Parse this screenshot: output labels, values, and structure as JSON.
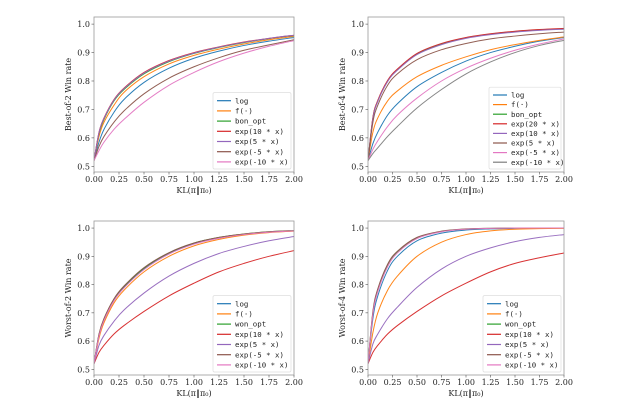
{
  "chart_data": [
    {
      "type": "line",
      "title": "",
      "xlabel": "KL(π‖π₀)",
      "ylabel": "Best-of-2 Win rate",
      "xlim": [
        0,
        2
      ],
      "ylim": [
        0.48,
        1.025
      ],
      "xticks": [
        "0.00",
        "0.25",
        "0.50",
        "0.75",
        "1.00",
        "1.25",
        "1.50",
        "1.75",
        "2.00"
      ],
      "yticks": [
        "0.5",
        "0.6",
        "0.7",
        "0.8",
        "0.9",
        "1.0"
      ],
      "legend": "lower-right",
      "grid": false,
      "x": [
        0,
        0.05,
        0.1,
        0.2,
        0.3,
        0.5,
        0.75,
        1.0,
        1.25,
        1.5,
        1.75,
        2.0
      ],
      "series": [
        {
          "name": "log",
          "color": "#1f77b4",
          "values": [
            0.52,
            0.585,
            0.63,
            0.69,
            0.735,
            0.795,
            0.845,
            0.88,
            0.905,
            0.925,
            0.94,
            0.953
          ]
        },
        {
          "name": "f(·)",
          "color": "#ff7f0e",
          "values": [
            0.52,
            0.605,
            0.655,
            0.715,
            0.76,
            0.815,
            0.86,
            0.89,
            0.912,
            0.93,
            0.945,
            0.957
          ]
        },
        {
          "name": "bon_opt",
          "color": "#2ca02c",
          "values": [
            0.52,
            0.615,
            0.665,
            0.73,
            0.77,
            0.825,
            0.868,
            0.897,
            0.918,
            0.935,
            0.949,
            0.96
          ]
        },
        {
          "name": "exp(10 * x)",
          "color": "#d62728",
          "values": [
            0.52,
            0.62,
            0.67,
            0.735,
            0.775,
            0.83,
            0.872,
            0.9,
            0.92,
            0.937,
            0.95,
            0.961
          ]
        },
        {
          "name": "exp(5 * x)",
          "color": "#9467bd",
          "values": [
            0.52,
            0.618,
            0.668,
            0.733,
            0.773,
            0.828,
            0.87,
            0.898,
            0.919,
            0.936,
            0.95,
            0.961
          ]
        },
        {
          "name": "exp(-5 * x)",
          "color": "#8c564b",
          "values": [
            0.52,
            0.57,
            0.605,
            0.655,
            0.695,
            0.755,
            0.81,
            0.85,
            0.882,
            0.908,
            0.927,
            0.945
          ]
        },
        {
          "name": "exp(-10 * x)",
          "color": "#e377c2",
          "values": [
            0.52,
            0.555,
            0.585,
            0.63,
            0.665,
            0.725,
            0.785,
            0.83,
            0.868,
            0.898,
            0.922,
            0.942
          ]
        }
      ]
    },
    {
      "type": "line",
      "title": "",
      "xlabel": "KL(π‖π₀)",
      "ylabel": "Best-of-4 Win rate",
      "xlim": [
        0,
        2
      ],
      "ylim": [
        0.48,
        1.025
      ],
      "xticks": [
        "0.00",
        "0.25",
        "0.50",
        "0.75",
        "1.00",
        "1.25",
        "1.50",
        "1.75",
        "2.00"
      ],
      "yticks": [
        "0.5",
        "0.6",
        "0.7",
        "0.8",
        "0.9",
        "1.0"
      ],
      "legend": "lower-right",
      "grid": false,
      "x": [
        0,
        0.05,
        0.1,
        0.2,
        0.3,
        0.5,
        0.75,
        1.0,
        1.25,
        1.5,
        1.75,
        2.0
      ],
      "series": [
        {
          "name": "log",
          "color": "#1f77b4",
          "values": [
            0.52,
            0.58,
            0.62,
            0.68,
            0.72,
            0.78,
            0.83,
            0.87,
            0.9,
            0.922,
            0.94,
            0.953
          ]
        },
        {
          "name": "f(·)",
          "color": "#ff7f0e",
          "values": [
            0.52,
            0.62,
            0.67,
            0.73,
            0.765,
            0.815,
            0.855,
            0.885,
            0.91,
            0.928,
            0.943,
            0.955
          ]
        },
        {
          "name": "bon_opt",
          "color": "#2ca02c",
          "values": [
            0.52,
            0.67,
            0.73,
            0.8,
            0.84,
            0.895,
            0.93,
            0.952,
            0.965,
            0.974,
            0.98,
            0.984
          ]
        },
        {
          "name": "exp(20 * x)",
          "color": "#d62728",
          "values": [
            0.52,
            0.672,
            0.732,
            0.802,
            0.842,
            0.897,
            0.932,
            0.953,
            0.966,
            0.975,
            0.981,
            0.985
          ]
        },
        {
          "name": "exp(10 * x)",
          "color": "#9467bd",
          "values": [
            0.52,
            0.668,
            0.728,
            0.798,
            0.838,
            0.893,
            0.928,
            0.95,
            0.963,
            0.972,
            0.978,
            0.982
          ]
        },
        {
          "name": "exp(5 * x)",
          "color": "#8c564b",
          "values": [
            0.52,
            0.655,
            0.715,
            0.785,
            0.825,
            0.875,
            0.91,
            0.932,
            0.948,
            0.958,
            0.966,
            0.972
          ]
        },
        {
          "name": "exp(-5 * x)",
          "color": "#e377c2",
          "values": [
            0.52,
            0.56,
            0.59,
            0.64,
            0.68,
            0.74,
            0.8,
            0.845,
            0.88,
            0.908,
            0.93,
            0.948
          ]
        },
        {
          "name": "exp(-10 * x)",
          "color": "#7f7f7f",
          "values": [
            0.52,
            0.545,
            0.565,
            0.605,
            0.64,
            0.705,
            0.77,
            0.825,
            0.867,
            0.9,
            0.925,
            0.943
          ]
        }
      ]
    },
    {
      "type": "line",
      "title": "",
      "xlabel": "KL(π‖π₀)",
      "ylabel": "Worst-of-2 Win rate",
      "xlim": [
        0,
        2
      ],
      "ylim": [
        0.48,
        1.025
      ],
      "xticks": [
        "0.00",
        "0.25",
        "0.50",
        "0.75",
        "1.00",
        "1.25",
        "1.50",
        "1.75",
        "2.00"
      ],
      "yticks": [
        "0.5",
        "0.6",
        "0.7",
        "0.8",
        "0.9",
        "1.0"
      ],
      "legend": "lower-right",
      "grid": false,
      "x": [
        0,
        0.05,
        0.1,
        0.2,
        0.3,
        0.5,
        0.75,
        1.0,
        1.25,
        1.5,
        1.75,
        2.0
      ],
      "series": [
        {
          "name": "log",
          "color": "#1f77b4",
          "values": [
            0.52,
            0.62,
            0.675,
            0.745,
            0.79,
            0.855,
            0.91,
            0.945,
            0.965,
            0.978,
            0.986,
            0.99
          ]
        },
        {
          "name": "f(·)",
          "color": "#ff7f0e",
          "values": [
            0.52,
            0.61,
            0.665,
            0.735,
            0.78,
            0.845,
            0.9,
            0.937,
            0.96,
            0.975,
            0.984,
            0.989
          ]
        },
        {
          "name": "won_opt",
          "color": "#2ca02c",
          "values": [
            0.52,
            0.623,
            0.678,
            0.748,
            0.793,
            0.858,
            0.912,
            0.947,
            0.967,
            0.979,
            0.987,
            0.991
          ]
        },
        {
          "name": "exp(10 * x)",
          "color": "#d62728",
          "values": [
            0.52,
            0.56,
            0.585,
            0.625,
            0.655,
            0.705,
            0.76,
            0.805,
            0.845,
            0.875,
            0.9,
            0.92
          ]
        },
        {
          "name": "exp(5 * x)",
          "color": "#9467bd",
          "values": [
            0.52,
            0.585,
            0.62,
            0.67,
            0.71,
            0.77,
            0.83,
            0.875,
            0.91,
            0.935,
            0.955,
            0.97
          ]
        },
        {
          "name": "exp(-5 * x)",
          "color": "#8c564b",
          "values": [
            0.52,
            0.625,
            0.68,
            0.75,
            0.795,
            0.86,
            0.913,
            0.947,
            0.967,
            0.979,
            0.987,
            0.991
          ]
        },
        {
          "name": "exp(-10 * x)",
          "color": "#e377c2",
          "values": [
            0.52,
            0.618,
            0.673,
            0.743,
            0.788,
            0.853,
            0.908,
            0.943,
            0.964,
            0.977,
            0.985,
            0.99
          ]
        }
      ]
    },
    {
      "type": "line",
      "title": "",
      "xlabel": "KL(π‖π₀)",
      "ylabel": "Worst-of-4 Win rate",
      "xlim": [
        0,
        2
      ],
      "ylim": [
        0.48,
        1.025
      ],
      "xticks": [
        "0.00",
        "0.25",
        "0.50",
        "0.75",
        "1.00",
        "1.25",
        "1.50",
        "1.75",
        "2.00"
      ],
      "yticks": [
        "0.5",
        "0.6",
        "0.7",
        "0.8",
        "0.9",
        "1.0"
      ],
      "legend": "lower-right",
      "grid": false,
      "x": [
        0,
        0.05,
        0.1,
        0.2,
        0.3,
        0.5,
        0.75,
        1.0,
        1.25,
        1.5,
        1.75,
        2.0
      ],
      "series": [
        {
          "name": "log",
          "color": "#1f77b4",
          "values": [
            0.52,
            0.68,
            0.76,
            0.85,
            0.9,
            0.955,
            0.982,
            0.993,
            0.997,
            0.999,
            1.0,
            1.0
          ]
        },
        {
          "name": "f(·)",
          "color": "#ff7f0e",
          "values": [
            0.52,
            0.63,
            0.7,
            0.78,
            0.83,
            0.9,
            0.95,
            0.977,
            0.99,
            0.996,
            0.998,
            0.999
          ]
        },
        {
          "name": "won_opt",
          "color": "#2ca02c",
          "values": [
            0.52,
            0.7,
            0.78,
            0.868,
            0.915,
            0.965,
            0.988,
            0.996,
            0.999,
            1.0,
            1.0,
            1.0
          ]
        },
        {
          "name": "exp(10 * x)",
          "color": "#d62728",
          "values": [
            0.52,
            0.56,
            0.585,
            0.625,
            0.655,
            0.705,
            0.76,
            0.805,
            0.845,
            0.875,
            0.895,
            0.912
          ]
        },
        {
          "name": "exp(5 * x)",
          "color": "#9467bd",
          "values": [
            0.52,
            0.59,
            0.625,
            0.68,
            0.72,
            0.79,
            0.855,
            0.9,
            0.93,
            0.952,
            0.967,
            0.977
          ]
        },
        {
          "name": "exp(-5 * x)",
          "color": "#8c564b",
          "values": [
            0.52,
            0.705,
            0.785,
            0.872,
            0.918,
            0.967,
            0.989,
            0.997,
            0.999,
            1.0,
            1.0,
            1.0
          ]
        },
        {
          "name": "exp(-10 * x)",
          "color": "#e377c2",
          "values": [
            0.52,
            0.695,
            0.775,
            0.863,
            0.912,
            0.963,
            0.987,
            0.996,
            0.999,
            1.0,
            1.0,
            1.0
          ]
        }
      ]
    }
  ]
}
